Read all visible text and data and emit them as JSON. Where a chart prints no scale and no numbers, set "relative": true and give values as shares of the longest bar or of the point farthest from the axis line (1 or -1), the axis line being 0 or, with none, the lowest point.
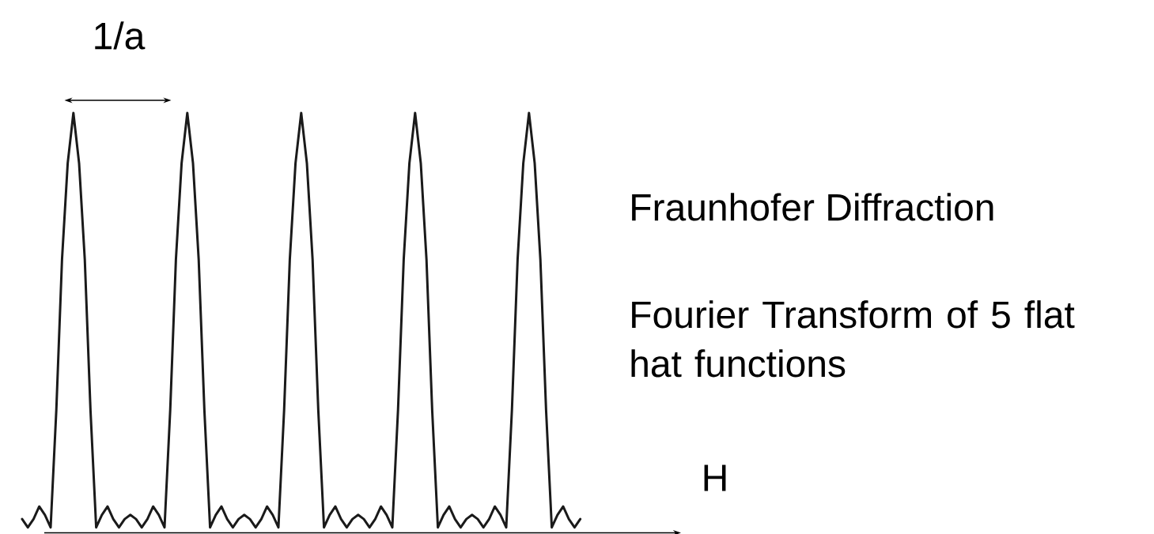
{
  "chart_data": {
    "type": "line",
    "relative": true,
    "color": "#1a1a1a",
    "xlabel": "H",
    "annotations": [
      "1/a",
      "Fraunhofer Diffraction",
      "Fourier Transform of 5 flat hat functions"
    ],
    "categories": [
      null,
      null,
      null,
      null,
      null,
      null,
      null,
      null,
      null,
      null,
      null,
      null,
      null,
      null,
      null,
      null,
      null,
      null,
      null,
      null,
      null,
      null,
      null,
      null,
      null,
      null,
      null,
      null,
      null,
      null,
      null,
      null,
      null,
      null,
      null,
      null,
      null,
      null,
      null,
      null,
      null,
      null,
      null,
      null,
      null,
      null,
      null,
      null,
      null,
      null,
      null,
      null,
      null,
      null,
      null,
      null,
      null,
      null,
      null,
      null,
      null,
      null,
      null,
      null,
      null,
      null,
      null,
      null,
      null,
      null,
      null,
      null,
      null,
      null,
      null,
      null,
      null,
      null,
      null,
      null,
      null,
      null,
      null,
      null,
      null,
      null,
      null,
      null,
      null,
      null,
      null,
      null,
      null,
      null,
      null,
      null,
      null,
      null,
      null
    ],
    "values": [
      0.03,
      0.01,
      0.03,
      0.06,
      0.04,
      0.01,
      0.29,
      0.65,
      0.88,
      1,
      0.88,
      0.65,
      0.29,
      0.01,
      0.04,
      0.06,
      0.03,
      0.01,
      0.03,
      0.04,
      0.03,
      0.01,
      0.03,
      0.06,
      0.04,
      0.01,
      0.29,
      0.65,
      0.88,
      1,
      0.88,
      0.65,
      0.29,
      0.01,
      0.04,
      0.06,
      0.03,
      0.01,
      0.03,
      0.04,
      0.03,
      0.01,
      0.03,
      0.06,
      0.04,
      0.01,
      0.29,
      0.65,
      0.88,
      1,
      0.88,
      0.65,
      0.29,
      0.01,
      0.04,
      0.06,
      0.03,
      0.01,
      0.03,
      0.04,
      0.03,
      0.01,
      0.03,
      0.06,
      0.04,
      0.01,
      0.29,
      0.65,
      0.88,
      1,
      0.88,
      0.65,
      0.29,
      0.01,
      0.04,
      0.06,
      0.03,
      0.01,
      0.03,
      0.04,
      0.03,
      0.01,
      0.03,
      0.06,
      0.04,
      0.01,
      0.29,
      0.65,
      0.88,
      1,
      0.88,
      0.65,
      0.29,
      0.01,
      0.04,
      0.06,
      0.03,
      0.01,
      0.03
    ],
    "marker": "none",
    "line_style": "solid"
  }
}
